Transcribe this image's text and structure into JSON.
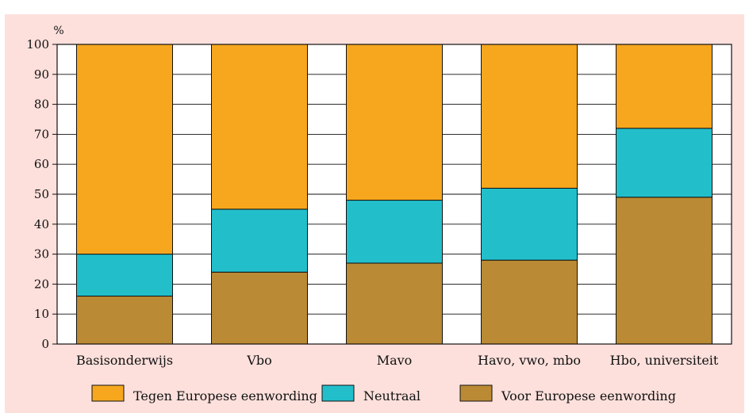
{
  "chart_data": {
    "type": "bar",
    "stacked": true,
    "title": "",
    "ylabel": "%",
    "ylim": [
      0,
      100
    ],
    "yticks": [
      0,
      10,
      20,
      30,
      40,
      50,
      60,
      70,
      80,
      90,
      100
    ],
    "categories": [
      "Basisonderwijs",
      "Vbo",
      "Mavo",
      "Havo, vwo, mbo",
      "Hbo, universiteit"
    ],
    "series": [
      {
        "name": "Voor Europese eenwording",
        "color": "#bb8a34",
        "values": [
          16,
          24,
          27,
          28,
          49
        ]
      },
      {
        "name": "Neutraal",
        "color": "#22bfcb",
        "values": [
          14,
          21,
          21,
          24,
          23
        ]
      },
      {
        "name": "Tegen Europese eenwording",
        "color": "#f6a71e",
        "values": [
          70,
          55,
          52,
          48,
          28
        ]
      }
    ],
    "legend_order": [
      "Tegen Europese eenwording",
      "Neutraal",
      "Voor Europese eenwording"
    ],
    "grid": true,
    "legend_position": "bottom",
    "background_color": "#fde0dc"
  }
}
